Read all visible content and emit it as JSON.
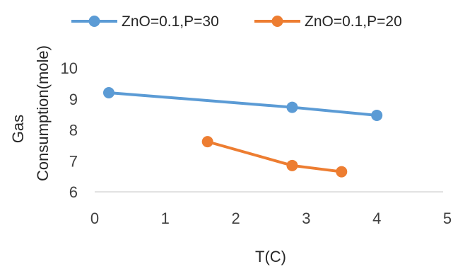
{
  "chart_data": {
    "type": "line",
    "title": "",
    "xlabel": "T(C)",
    "ylabel_lines": [
      "Gas",
      "Consumption(mole)"
    ],
    "xlim": [
      0,
      5
    ],
    "ylim": [
      6,
      10
    ],
    "xticks": [
      0,
      1,
      2,
      3,
      4,
      5
    ],
    "yticks": [
      6,
      7,
      8,
      9,
      10
    ],
    "grid": false,
    "legend_position": "top",
    "series": [
      {
        "name": "ZnO=0.1,P=30",
        "color": "#5b9bd5",
        "x": [
          0.2,
          2.8,
          4.0
        ],
        "y": [
          9.2,
          8.73,
          8.47
        ]
      },
      {
        "name": "ZnO=0.1,P=20",
        "color": "#ed7d31",
        "x": [
          1.6,
          2.8,
          3.5
        ],
        "y": [
          7.62,
          6.85,
          6.65
        ]
      }
    ]
  }
}
